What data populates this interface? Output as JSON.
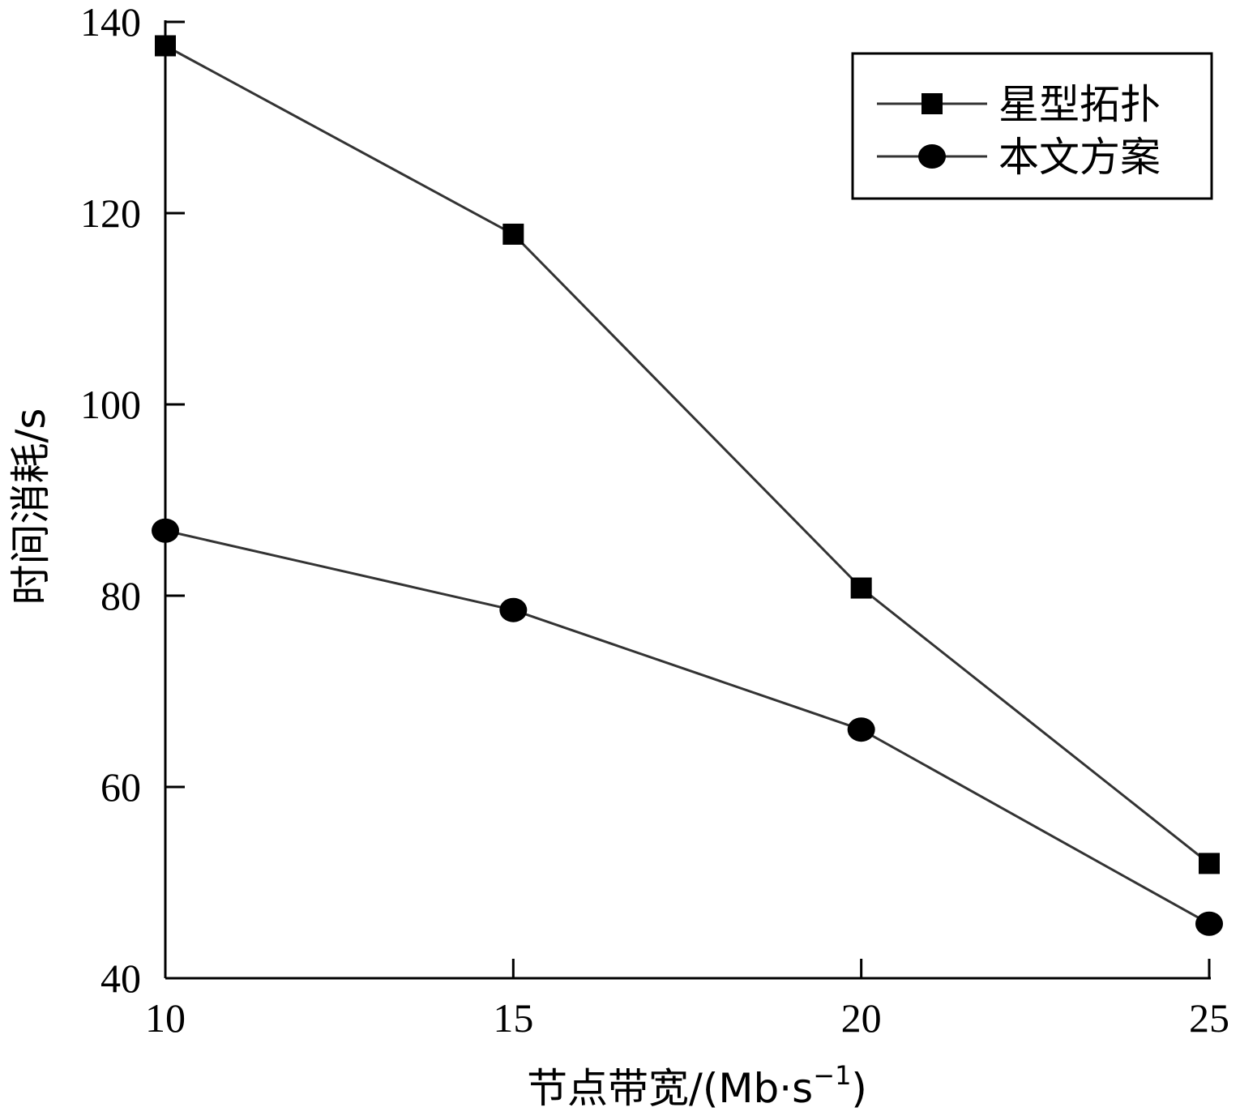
{
  "chart_data": {
    "type": "line",
    "x": [
      10,
      15,
      20,
      25
    ],
    "series": [
      {
        "name": "星型拓扑",
        "marker": "square",
        "values": [
          137.5,
          117.8,
          80.8,
          52
        ]
      },
      {
        "name": "本文方案",
        "marker": "circle",
        "values": [
          86.8,
          78.5,
          66,
          45.7
        ]
      }
    ],
    "xlabel": "节点带宽/(Mb·s",
    "xlabel_sup": "−1",
    "xlabel_end": ")",
    "ylabel": "时间消耗/s",
    "xlim": [
      10,
      25
    ],
    "ylim": [
      40,
      140
    ],
    "xticks": [
      10,
      15,
      20,
      25
    ],
    "yticks": [
      40,
      60,
      80,
      100,
      120,
      140
    ],
    "grid": false,
    "legend_position": "top-right",
    "colors": {
      "line": "#333333",
      "marker": "#000000",
      "axis": "#000000"
    }
  }
}
